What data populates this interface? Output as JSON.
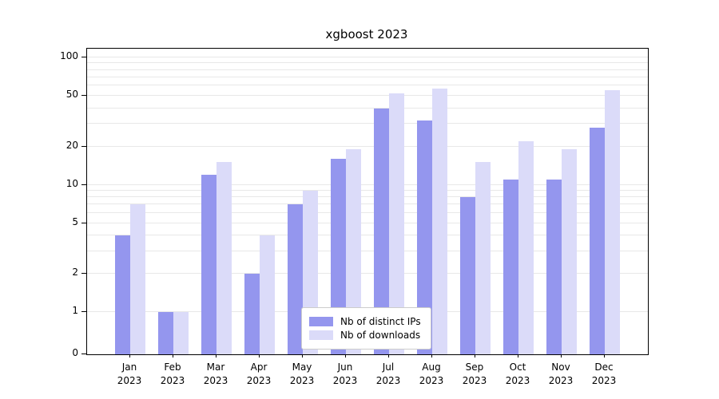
{
  "title": "xgboost 2023",
  "legend": {
    "items": [
      {
        "label": "Nb of distinct IPs",
        "color": "#9496ee"
      },
      {
        "label": "Nb of downloads",
        "color": "#dbdbf9"
      }
    ]
  },
  "chart_data": {
    "type": "bar",
    "title": "xgboost 2023",
    "categories": [
      "Jan 2023",
      "Feb 2023",
      "Mar 2023",
      "Apr 2023",
      "May 2023",
      "Jun 2023",
      "Jul 2023",
      "Aug 2023",
      "Sep 2023",
      "Oct 2023",
      "Nov 2023",
      "Dec 2023"
    ],
    "series": [
      {
        "name": "Nb of distinct IPs",
        "color": "#9496ee",
        "values": [
          4,
          1,
          12,
          2,
          7,
          16,
          40,
          32,
          8,
          11,
          11,
          28
        ]
      },
      {
        "name": "Nb of downloads",
        "color": "#dbdbf9",
        "values": [
          7,
          1,
          15,
          4,
          9,
          19,
          52,
          57,
          15,
          22,
          19,
          55
        ]
      }
    ],
    "xlabel": "",
    "ylabel": "",
    "yscale": "symlog",
    "yticks": [
      0,
      1,
      2,
      5,
      10,
      20,
      50,
      100
    ],
    "minor_gridlines": [
      1,
      2,
      3,
      4,
      5,
      6,
      7,
      8,
      9,
      10,
      20,
      30,
      40,
      50,
      60,
      70,
      80,
      90,
      100
    ],
    "ylim": [
      0,
      115
    ],
    "grid": true,
    "legend_position": "lower center"
  }
}
